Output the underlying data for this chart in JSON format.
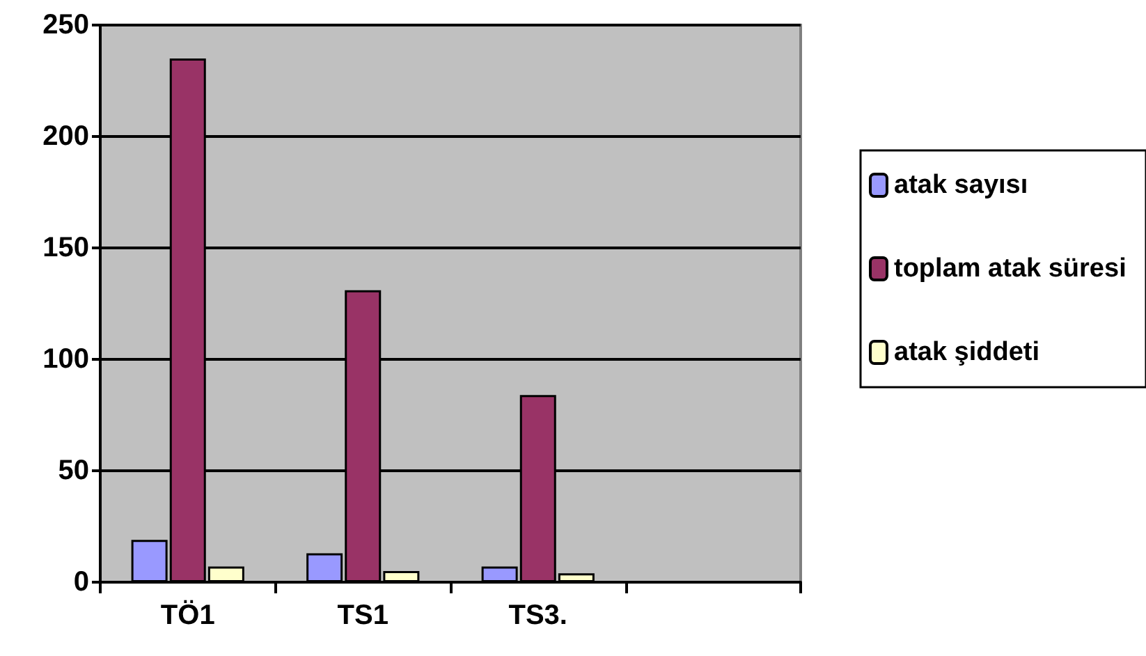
{
  "chart_data": {
    "type": "bar",
    "categories": [
      "TÖ1",
      "TS1",
      "TS3.",
      null
    ],
    "series": [
      {
        "name": "atak sayısı",
        "color": "#9999ff",
        "values": [
          19,
          13,
          7,
          null
        ]
      },
      {
        "name": "toplam atak süresi",
        "color": "#993366",
        "values": [
          235,
          131,
          84,
          null
        ]
      },
      {
        "name": "atak şiddeti",
        "color": "#ffffcc",
        "values": [
          7,
          5,
          4,
          null
        ]
      }
    ],
    "ylim": [
      0,
      250
    ],
    "yticks": [
      0,
      50,
      100,
      150,
      200,
      250
    ],
    "grid": "y",
    "legend": "right"
  }
}
